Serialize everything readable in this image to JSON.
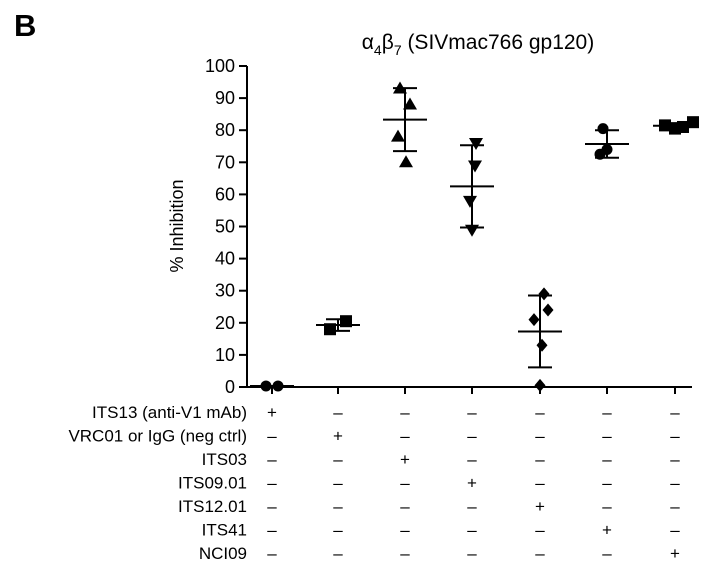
{
  "panel_label": "B",
  "chart_data": {
    "type": "scatter",
    "title_main": "α",
    "title_sub1": "4",
    "title_mid": "β",
    "title_sub2": "7",
    "title_rest": " (SIVmac766 gp120)",
    "ylabel": "% Inhibition",
    "ylim": [
      0,
      100
    ],
    "yticks": [
      "0",
      "10",
      "20",
      "30",
      "40",
      "50",
      "60",
      "70",
      "80",
      "90",
      "100"
    ],
    "grid": false,
    "error_bars": "mean ± SD",
    "groups": [
      {
        "marker": "circle",
        "points": [
          0.3,
          0.3
        ],
        "mean": 0.3,
        "sd": 0
      },
      {
        "marker": "square",
        "points": [
          18,
          20.5
        ],
        "mean": 19.3,
        "sd": 1.8
      },
      {
        "marker": "triangle-up",
        "points": [
          93,
          88,
          78,
          70
        ],
        "mean": 83.3,
        "sd": 9.8
      },
      {
        "marker": "triangle-down",
        "points": [
          76,
          69,
          58,
          49
        ],
        "mean": 62.5,
        "sd": 12.8
      },
      {
        "marker": "diamond",
        "points": [
          29,
          24,
          21,
          13,
          0.5
        ],
        "mean": 17.3,
        "sd": 11.2
      },
      {
        "marker": "circle",
        "points": [
          80.5,
          74,
          72.5
        ],
        "mean": 75.7,
        "sd": 4.3
      },
      {
        "marker": "square",
        "points": [
          81.5,
          80.5,
          81,
          82.5
        ],
        "mean": 81.4,
        "sd": 0.8
      }
    ],
    "conditions": [
      {
        "label": "ITS13 (anti-V1 mAb)",
        "marks": [
          "+",
          "–",
          "–",
          "–",
          "–",
          "–",
          "–"
        ]
      },
      {
        "label": "VRC01 or IgG (neg ctrl)",
        "marks": [
          "–",
          "+",
          "–",
          "–",
          "–",
          "–",
          "–"
        ]
      },
      {
        "label": "ITS03",
        "marks": [
          "–",
          "–",
          "+",
          "–",
          "–",
          "–",
          "–"
        ]
      },
      {
        "label": "ITS09.01",
        "marks": [
          "–",
          "–",
          "–",
          "+",
          "–",
          "–",
          "–"
        ]
      },
      {
        "label": "ITS12.01",
        "marks": [
          "–",
          "–",
          "–",
          "–",
          "+",
          "–",
          "–"
        ]
      },
      {
        "label": "ITS41",
        "marks": [
          "–",
          "–",
          "–",
          "–",
          "–",
          "+",
          "–"
        ]
      },
      {
        "label": "NCI09",
        "marks": [
          "–",
          "–",
          "–",
          "–",
          "–",
          "–",
          "+"
        ]
      }
    ]
  }
}
